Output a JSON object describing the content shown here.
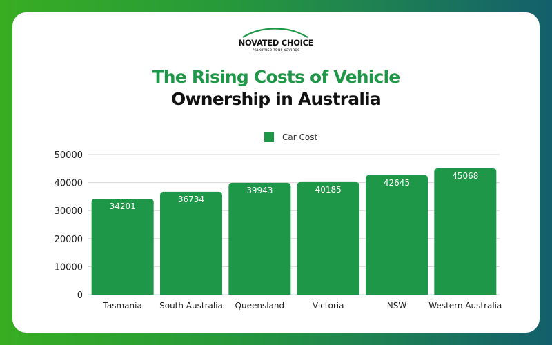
{
  "brand": {
    "name": "NOVATED CHOICE",
    "tagline": "Maximise Your Savings"
  },
  "title_line1": "The Rising Costs of Vehicle",
  "title_line2": "Ownership in Australia",
  "colors": {
    "bar": "#1f9748",
    "title_accent": "#1f9748"
  },
  "chart_data": {
    "type": "bar",
    "title": "The Rising Costs of Vehicle Ownership in Australia",
    "categories": [
      "Tasmania",
      "South Australia",
      "Queensland",
      "Victoria",
      "NSW",
      "Western Australia"
    ],
    "series": [
      {
        "name": "Car Cost",
        "values": [
          34201,
          36734,
          39943,
          40185,
          42645,
          45068
        ]
      }
    ],
    "ylim": [
      0,
      50000
    ],
    "yticks": [
      0,
      10000,
      20000,
      30000,
      40000,
      50000
    ],
    "xlabel": "",
    "ylabel": "",
    "grid": true,
    "legend": "top-center",
    "data_labels": true
  }
}
